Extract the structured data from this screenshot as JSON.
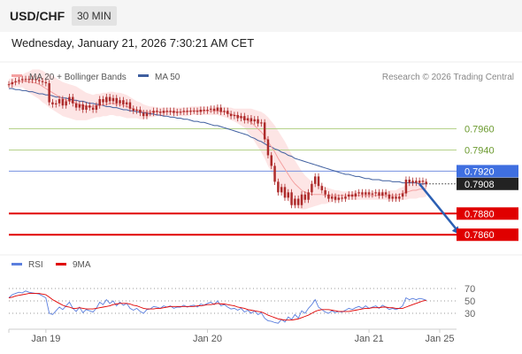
{
  "header": {
    "symbol": "USD/CHF",
    "timeframe": "30 MIN",
    "datetime": "Wednesday, January 21, 2026 7:30:21 AM CET"
  },
  "colors": {
    "ma20": "#f4a0a0",
    "ma50": "#3f5f9f",
    "band_fill": "#fde0e0",
    "candle": "#ad2b2b",
    "support_line": "#e00000",
    "resistance_line": "#b5d28a",
    "pivot_line": "#7590e0",
    "rsi": "#5b7fde",
    "rsi_ma": "#e00000",
    "current_price_bg": "#222222"
  },
  "chart_data": [
    {
      "type": "candlestick",
      "legend": [
        {
          "name": "MA 20 + Bollinger Bands",
          "color": "#f4a0a0"
        },
        {
          "name": "MA 50",
          "color": "#3f5f9f"
        }
      ],
      "credit": "Research © 2026 Trading Central",
      "x_labels": [
        {
          "label": "Jan 19",
          "t": 11
        },
        {
          "label": "Jan 20",
          "t": 59
        },
        {
          "label": "Jan 21",
          "t": 107
        },
        {
          "label": "Jan 25",
          "t": 128
        }
      ],
      "x_range": [
        0,
        133
      ],
      "y_range": [
        0.7846,
        0.7988
      ],
      "levels": [
        {
          "price": 0.796,
          "label": "0.7960",
          "kind": "resistance"
        },
        {
          "price": 0.794,
          "label": "0.7940",
          "kind": "resistance"
        },
        {
          "price": 0.792,
          "label": "0.7920",
          "kind": "pivot"
        },
        {
          "price": 0.788,
          "label": "0.7880",
          "kind": "support"
        },
        {
          "price": 0.786,
          "label": "0.7860",
          "kind": "support"
        }
      ],
      "current_price": {
        "price": 0.7908,
        "label": "0.7908"
      },
      "forecast_arrow": {
        "from": [
          122,
          0.7908
        ],
        "to": [
          134,
          0.786
        ]
      },
      "close": [
        0.8002,
        0.8004,
        0.8005,
        0.8006,
        0.8007,
        0.8007,
        0.8006,
        0.8007,
        0.8006,
        0.8005,
        0.8004,
        0.8003,
        0.7985,
        0.7983,
        0.7984,
        0.7988,
        0.7982,
        0.7986,
        0.799,
        0.7984,
        0.798,
        0.7983,
        0.7978,
        0.7982,
        0.798,
        0.7978,
        0.7982,
        0.7988,
        0.7985,
        0.799,
        0.7986,
        0.7989,
        0.7984,
        0.7987,
        0.7983,
        0.7985,
        0.7979,
        0.7977,
        0.7978,
        0.7975,
        0.7972,
        0.7975,
        0.7975,
        0.7977,
        0.7976,
        0.7975,
        0.7977,
        0.7976,
        0.7977,
        0.7975,
        0.7976,
        0.7976,
        0.7977,
        0.7976,
        0.7977,
        0.7977,
        0.7976,
        0.7978,
        0.7977,
        0.7978,
        0.7979,
        0.7977,
        0.798,
        0.7976,
        0.7977,
        0.7974,
        0.7972,
        0.7973,
        0.797,
        0.7972,
        0.7968,
        0.797,
        0.7967,
        0.7969,
        0.7965,
        0.7966,
        0.795,
        0.7935,
        0.7925,
        0.791,
        0.79,
        0.7905,
        0.7895,
        0.79,
        0.7888,
        0.7894,
        0.7888,
        0.7898,
        0.7893,
        0.79,
        0.7908,
        0.7915,
        0.7906,
        0.7902,
        0.7898,
        0.7894,
        0.7896,
        0.7893,
        0.7895,
        0.7894,
        0.7896,
        0.7898,
        0.7896,
        0.7899,
        0.79,
        0.7898,
        0.79,
        0.7898,
        0.7899,
        0.79,
        0.7897,
        0.79,
        0.7898,
        0.7894,
        0.7896,
        0.7894,
        0.7896,
        0.7899,
        0.7912,
        0.7909,
        0.7911,
        0.7909,
        0.7911,
        0.791,
        0.7908
      ],
      "ma20": [
        0.8002,
        0.8003,
        0.8004,
        0.8004,
        0.8005,
        0.8005,
        0.8004,
        0.8004,
        0.8003,
        0.8002,
        0.8,
        0.7998,
        0.7996,
        0.7994,
        0.7992,
        0.799,
        0.7988,
        0.7987,
        0.7986,
        0.7985,
        0.7984,
        0.7983,
        0.7982,
        0.7981,
        0.7981,
        0.7981,
        0.7982,
        0.7982,
        0.7983,
        0.7983,
        0.7984,
        0.7984,
        0.7983,
        0.7983,
        0.7982,
        0.7981,
        0.798,
        0.7979,
        0.7978,
        0.7977,
        0.7976,
        0.7976,
        0.7976,
        0.7976,
        0.7976,
        0.7976,
        0.7976,
        0.7976,
        0.7976,
        0.7976,
        0.7976,
        0.7976,
        0.7976,
        0.7976,
        0.7977,
        0.7977,
        0.7977,
        0.7977,
        0.7977,
        0.7977,
        0.7977,
        0.7977,
        0.7977,
        0.7976,
        0.7976,
        0.7975,
        0.7974,
        0.7973,
        0.7972,
        0.7971,
        0.797,
        0.7968,
        0.7966,
        0.7963,
        0.796,
        0.7957,
        0.7953,
        0.7948,
        0.7943,
        0.7938,
        0.7932,
        0.7927,
        0.7922,
        0.7917,
        0.7912,
        0.7908,
        0.7905,
        0.7902,
        0.79,
        0.7899,
        0.7898,
        0.7898,
        0.7898,
        0.7898,
        0.7897,
        0.7897,
        0.7897,
        0.7897,
        0.7897,
        0.7897,
        0.7897,
        0.7897,
        0.7897,
        0.7897,
        0.7897,
        0.7897,
        0.7897,
        0.7897,
        0.7897,
        0.7897,
        0.7897,
        0.7897,
        0.7897,
        0.7897,
        0.7897,
        0.7897,
        0.7898,
        0.7899,
        0.79,
        0.7901,
        0.7902,
        0.7902,
        0.7903,
        0.7903,
        0.7904
      ],
      "ma50": [
        0.7998,
        0.7998,
        0.7997,
        0.7997,
        0.7996,
        0.7996,
        0.7995,
        0.7995,
        0.7994,
        0.7993,
        0.7993,
        0.7992,
        0.7992,
        0.7991,
        0.799,
        0.799,
        0.7989,
        0.7989,
        0.7988,
        0.7987,
        0.7987,
        0.7986,
        0.7986,
        0.7985,
        0.7984,
        0.7984,
        0.7983,
        0.7983,
        0.7982,
        0.7981,
        0.7981,
        0.798,
        0.798,
        0.7979,
        0.7978,
        0.7978,
        0.7977,
        0.7977,
        0.7976,
        0.7976,
        0.7975,
        0.7975,
        0.7974,
        0.7974,
        0.7973,
        0.7973,
        0.7972,
        0.7972,
        0.7971,
        0.7971,
        0.797,
        0.797,
        0.7969,
        0.7969,
        0.7968,
        0.7967,
        0.7967,
        0.7966,
        0.7966,
        0.7965,
        0.7964,
        0.7963,
        0.7963,
        0.7962,
        0.7961,
        0.796,
        0.7959,
        0.7958,
        0.7957,
        0.7956,
        0.7955,
        0.7954,
        0.7952,
        0.7951,
        0.7949,
        0.7948,
        0.7946,
        0.7944,
        0.7943,
        0.7941,
        0.794,
        0.7938,
        0.7937,
        0.7935,
        0.7934,
        0.7932,
        0.7931,
        0.793,
        0.7929,
        0.7928,
        0.7927,
        0.7926,
        0.7925,
        0.7924,
        0.7923,
        0.7922,
        0.7921,
        0.792,
        0.7919,
        0.7918,
        0.7917,
        0.7917,
        0.7916,
        0.7915,
        0.7915,
        0.7914,
        0.7913,
        0.7913,
        0.7912,
        0.7912,
        0.7912,
        0.7911,
        0.7911,
        0.7911,
        0.791,
        0.791,
        0.791,
        0.7909,
        0.7909,
        0.7909,
        0.7909,
        0.7909,
        0.7908,
        0.7908,
        0.7908
      ],
      "band_width": [
        0.0005,
        0.0005,
        0.0005,
        0.0005,
        0.0006,
        0.0008,
        0.001,
        0.0012,
        0.0013,
        0.0014,
        0.0015,
        0.0015,
        0.0016,
        0.0016,
        0.0016,
        0.0016,
        0.0016,
        0.0016,
        0.0016,
        0.0016,
        0.0016,
        0.0015,
        0.0014,
        0.0013,
        0.0012,
        0.0011,
        0.0011,
        0.0011,
        0.0011,
        0.0011,
        0.0011,
        0.0011,
        0.0011,
        0.0011,
        0.0011,
        0.0011,
        0.001,
        0.0009,
        0.0008,
        0.0008,
        0.0007,
        0.0006,
        0.0005,
        0.0005,
        0.0004,
        0.0004,
        0.0004,
        0.0004,
        0.0004,
        0.0004,
        0.0004,
        0.0004,
        0.0004,
        0.0004,
        0.0004,
        0.0004,
        0.0004,
        0.0004,
        0.0004,
        0.0004,
        0.0004,
        0.0004,
        0.0004,
        0.0004,
        0.0005,
        0.0005,
        0.0006,
        0.0006,
        0.0007,
        0.0008,
        0.0009,
        0.0011,
        0.0013,
        0.0015,
        0.0017,
        0.0019,
        0.0021,
        0.0023,
        0.0024,
        0.0025,
        0.0026,
        0.0026,
        0.0026,
        0.0025,
        0.0024,
        0.0022,
        0.002,
        0.0018,
        0.0016,
        0.0014,
        0.0012,
        0.0011,
        0.001,
        0.0009,
        0.0008,
        0.0007,
        0.0006,
        0.0005,
        0.0005,
        0.0004,
        0.0004,
        0.0004,
        0.0004,
        0.0004,
        0.0004,
        0.0004,
        0.0004,
        0.0004,
        0.0004,
        0.0004,
        0.0004,
        0.0004,
        0.0004,
        0.0005,
        0.0005,
        0.0005,
        0.0006,
        0.0006,
        0.0007,
        0.0007,
        0.0008,
        0.0008,
        0.0008,
        0.0008,
        0.0008
      ]
    },
    {
      "type": "line",
      "legend": [
        {
          "name": "RSI",
          "color": "#5b7fde"
        },
        {
          "name": "9MA",
          "color": "#e00000"
        }
      ],
      "y_ticks": [
        70,
        50,
        30
      ],
      "y_range": [
        10,
        90
      ],
      "rsi": [
        55,
        60,
        62,
        64,
        63,
        66,
        64,
        63,
        62,
        61,
        58,
        55,
        30,
        28,
        34,
        40,
        36,
        42,
        48,
        38,
        33,
        40,
        31,
        36,
        34,
        32,
        38,
        48,
        44,
        52,
        46,
        50,
        42,
        48,
        43,
        46,
        38,
        35,
        38,
        33,
        30,
        36,
        37,
        41,
        40,
        38,
        42,
        40,
        42,
        38,
        40,
        40,
        43,
        40,
        42,
        43,
        40,
        45,
        43,
        46,
        48,
        44,
        50,
        42,
        44,
        40,
        37,
        38,
        35,
        38,
        32,
        35,
        30,
        34,
        28,
        31,
        22,
        18,
        17,
        15,
        14,
        20,
        16,
        24,
        20,
        28,
        22,
        34,
        30,
        38,
        44,
        52,
        40,
        36,
        32,
        30,
        34,
        31,
        33,
        32,
        35,
        38,
        36,
        39,
        41,
        38,
        42,
        38,
        40,
        42,
        38,
        43,
        40,
        36,
        38,
        36,
        38,
        42,
        55,
        52,
        54,
        52,
        54,
        53,
        51
      ],
      "ma9": [
        55,
        56,
        58,
        59,
        60,
        61,
        62,
        62,
        62,
        62,
        61,
        60,
        56,
        52,
        49,
        46,
        43,
        41,
        40,
        38,
        38,
        39,
        38,
        37,
        37,
        37,
        38,
        39,
        40,
        41,
        42,
        44,
        45,
        46,
        46,
        46,
        45,
        43,
        42,
        40,
        38,
        37,
        37,
        37,
        38,
        38,
        39,
        40,
        41,
        41,
        41,
        41,
        41,
        41,
        41,
        41,
        42,
        42,
        43,
        44,
        44,
        45,
        46,
        45,
        45,
        44,
        43,
        42,
        40,
        39,
        38,
        36,
        35,
        34,
        33,
        32,
        30,
        27,
        25,
        23,
        21,
        20,
        19,
        19,
        19,
        20,
        21,
        23,
        25,
        27,
        30,
        33,
        35,
        36,
        36,
        36,
        35,
        34,
        33,
        33,
        33,
        33,
        34,
        35,
        36,
        37,
        38,
        38,
        39,
        39,
        39,
        40,
        40,
        39,
        39,
        38,
        38,
        38,
        40,
        42,
        44,
        46,
        48,
        50,
        51
      ]
    }
  ]
}
